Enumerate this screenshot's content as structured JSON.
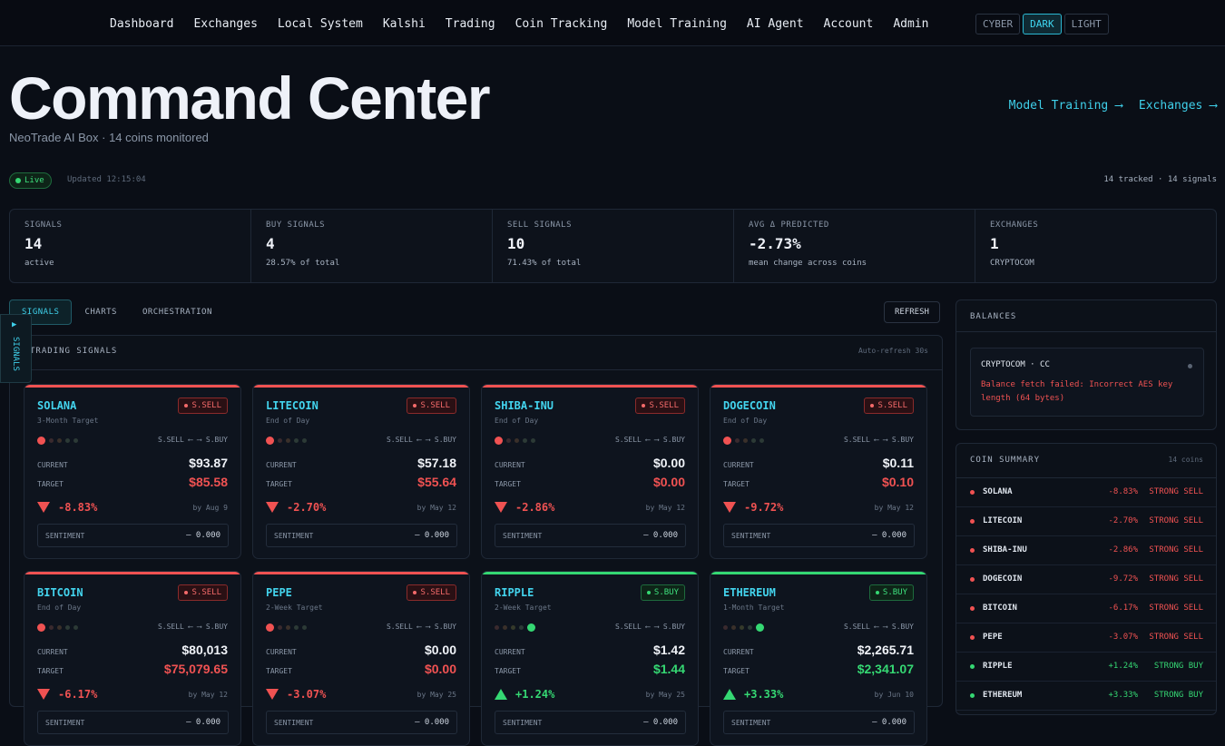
{
  "nav": {
    "links": [
      "Dashboard",
      "Exchanges",
      "Local System",
      "Kalshi",
      "Trading",
      "Coin Tracking",
      "Model Training",
      "AI Agent",
      "Account",
      "Admin"
    ],
    "themes": [
      "CYBER",
      "DARK",
      "LIGHT"
    ],
    "active_theme": "DARK"
  },
  "hero": {
    "title": "Command Center",
    "subtitle": "NeoTrade AI Box · 14 coins monitored",
    "link_model": "Model Training ⟶",
    "link_exchanges": "Exchanges ⟶"
  },
  "status": {
    "live": "Live",
    "updated": "Updated 12:15:04",
    "tracked": "14 tracked · 14 signals"
  },
  "stats": [
    {
      "label": "SIGNALS",
      "value": "14",
      "sub": "active",
      "sub_color": "#a8b3c2"
    },
    {
      "label": "BUY SIGNALS",
      "value": "4",
      "sub": "28.57% of total",
      "sub_color": "#35d873"
    },
    {
      "label": "SELL SIGNALS",
      "value": "10",
      "sub": "71.43% of total",
      "sub_color": "#f05252"
    },
    {
      "label": "AVG Δ PREDICTED",
      "value": "-2.73%",
      "sub": "mean change across coins",
      "sub_color": "#f05252"
    },
    {
      "label": "EXCHANGES",
      "value": "1",
      "sub": "CRYPTOCOM",
      "sub_color": "#a8b3c2"
    }
  ],
  "tabs": [
    "SIGNALS",
    "CHARTS",
    "ORCHESTRATION"
  ],
  "refresh": "REFRESH",
  "sidetab": {
    "arrow": "▶",
    "label": "SIGNALS"
  },
  "signals_panel": {
    "title": "TRADING SIGNALS",
    "auto": "Auto-refresh 30s"
  },
  "card_labels": {
    "current": "CURRENT",
    "target": "TARGET",
    "sentiment": "SENTIMENT",
    "scale": "S.SELL ⟵ ⟶ S.BUY"
  },
  "cards": [
    {
      "name": "SOLANA",
      "horizon": "3-Month Target",
      "signal": "S.SELL",
      "current": "$93.87",
      "target": "$85.58",
      "pct": "-8.83%",
      "by": "by Aug 9",
      "sentiment": "— 0.000",
      "dir": "down"
    },
    {
      "name": "LITECOIN",
      "horizon": "End of Day",
      "signal": "S.SELL",
      "current": "$57.18",
      "target": "$55.64",
      "pct": "-2.70%",
      "by": "by May 12",
      "sentiment": "— 0.000",
      "dir": "down"
    },
    {
      "name": "SHIBA-INU",
      "horizon": "End of Day",
      "signal": "S.SELL",
      "current": "$0.00",
      "target": "$0.00",
      "pct": "-2.86%",
      "by": "by May 12",
      "sentiment": "— 0.000",
      "dir": "down"
    },
    {
      "name": "DOGECOIN",
      "horizon": "End of Day",
      "signal": "S.SELL",
      "current": "$0.11",
      "target": "$0.10",
      "pct": "-9.72%",
      "by": "by May 12",
      "sentiment": "— 0.000",
      "dir": "down"
    },
    {
      "name": "BITCOIN",
      "horizon": "End of Day",
      "signal": "S.SELL",
      "current": "$80,013",
      "target": "$75,079.65",
      "pct": "-6.17%",
      "by": "by May 12",
      "sentiment": "— 0.000",
      "dir": "down"
    },
    {
      "name": "PEPE",
      "horizon": "2-Week Target",
      "signal": "S.SELL",
      "current": "$0.00",
      "target": "$0.00",
      "pct": "-3.07%",
      "by": "by May 25",
      "sentiment": "— 0.000",
      "dir": "down"
    },
    {
      "name": "RIPPLE",
      "horizon": "2-Week Target",
      "signal": "S.BUY",
      "current": "$1.42",
      "target": "$1.44",
      "pct": "+1.24%",
      "by": "by May 25",
      "sentiment": "— 0.000",
      "dir": "up"
    },
    {
      "name": "ETHEREUM",
      "horizon": "1-Month Target",
      "signal": "S.BUY",
      "current": "$2,265.71",
      "target": "$2,341.07",
      "pct": "+3.33%",
      "by": "by Jun 10",
      "sentiment": "— 0.000",
      "dir": "up"
    }
  ],
  "balances": {
    "title": "BALANCES",
    "exchange": "CRYPTOCOM · CC",
    "error": "Balance fetch failed: Incorrect AES key length (64 bytes)"
  },
  "summary": {
    "title": "COIN SUMMARY",
    "count": "14 coins",
    "rows": [
      {
        "name": "SOLANA",
        "pct": "-8.83%",
        "signal": "STRONG SELL",
        "dir": "down"
      },
      {
        "name": "LITECOIN",
        "pct": "-2.70%",
        "signal": "STRONG SELL",
        "dir": "down"
      },
      {
        "name": "SHIBA-INU",
        "pct": "-2.86%",
        "signal": "STRONG SELL",
        "dir": "down"
      },
      {
        "name": "DOGECOIN",
        "pct": "-9.72%",
        "signal": "STRONG SELL",
        "dir": "down"
      },
      {
        "name": "BITCOIN",
        "pct": "-6.17%",
        "signal": "STRONG SELL",
        "dir": "down"
      },
      {
        "name": "PEPE",
        "pct": "-3.07%",
        "signal": "STRONG SELL",
        "dir": "down"
      },
      {
        "name": "RIPPLE",
        "pct": "+1.24%",
        "signal": "STRONG BUY",
        "dir": "up"
      },
      {
        "name": "ETHEREUM",
        "pct": "+3.33%",
        "signal": "STRONG BUY",
        "dir": "up"
      }
    ]
  },
  "colors": {
    "accent": "#3fd0ea",
    "sell": "#f05252",
    "buy": "#35d873",
    "bg": "#0a0e16"
  }
}
